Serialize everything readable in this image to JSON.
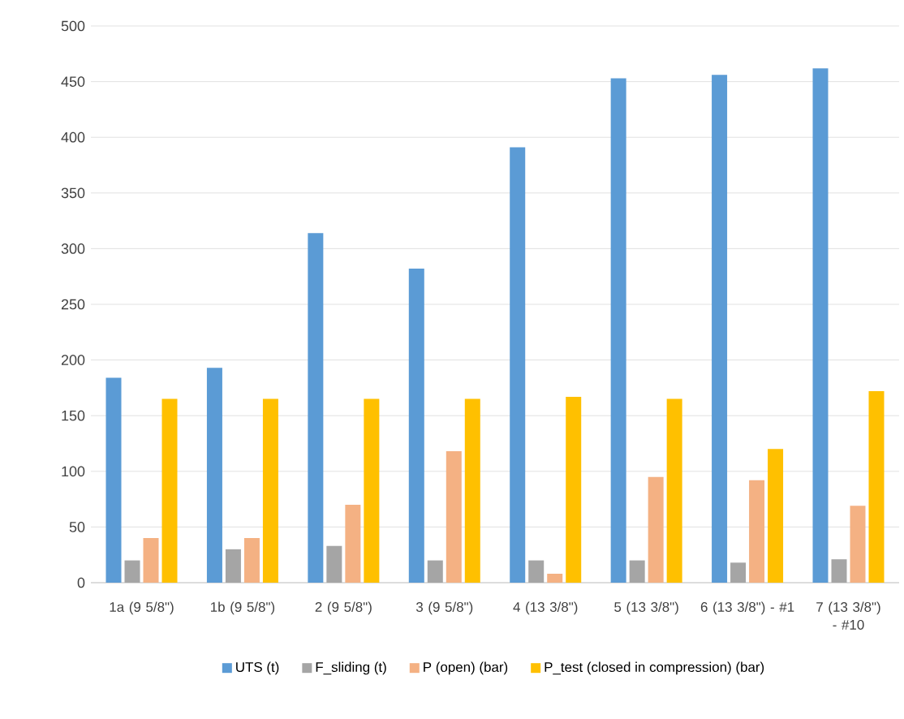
{
  "chart_data": {
    "type": "bar",
    "categories": [
      "1a (9 5/8\")",
      "1b (9 5/8\")",
      "2 (9 5/8\")",
      "3 (9 5/8\")",
      "4 (13 3/8\")",
      "5 (13 3/8\")",
      "6 (13 3/8\") - #1",
      "7 (13 3/8\") - #10"
    ],
    "series": [
      {
        "name": "UTS (t)",
        "color": "#5b9bd5",
        "values": [
          184,
          193,
          314,
          282,
          391,
          453,
          456,
          462
        ]
      },
      {
        "name": "F_sliding (t)",
        "color": "#a5a5a5",
        "values": [
          20,
          30,
          33,
          20,
          20,
          20,
          18,
          21
        ]
      },
      {
        "name": "P (open) (bar)",
        "color": "#f4b183",
        "values": [
          40,
          40,
          70,
          118,
          8,
          95,
          92,
          69
        ]
      },
      {
        "name": "P_test (closed in compression) (bar)",
        "color": "#ffc000",
        "values": [
          165,
          165,
          165,
          165,
          167,
          165,
          120,
          172
        ]
      }
    ],
    "ylim": [
      0,
      500
    ],
    "yticks": [
      0,
      50,
      100,
      150,
      200,
      250,
      300,
      350,
      400,
      450,
      500
    ],
    "grid": "y",
    "legend": "bottom"
  }
}
